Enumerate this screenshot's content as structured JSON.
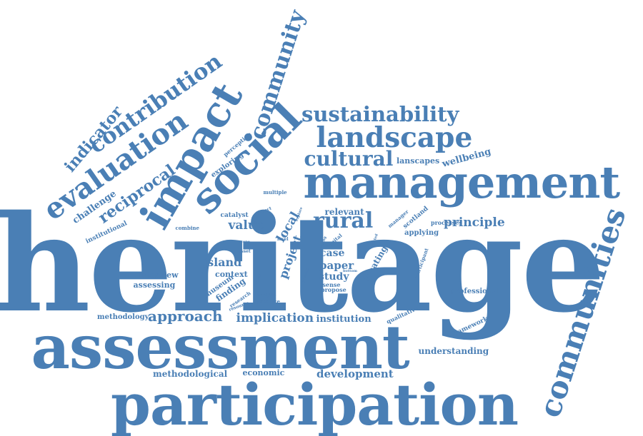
{
  "colors": {
    "text": "#4a7fb5",
    "background": "#ffffff"
  },
  "words": {
    "heritage": "heritage",
    "assessment": "assessment",
    "participation": "participation",
    "management": "management",
    "social": "social",
    "impact": "impact",
    "communities": "communities",
    "community": "community",
    "landscape": "landscape",
    "sustainability": "sustainability",
    "cultural": "cultural",
    "evaluation": "evaluation",
    "contribution": "contribution",
    "indicator": "indicator",
    "reciprocal": "reciprocal",
    "challenge": "challenge",
    "institutional": "institutional",
    "rural": "rural",
    "value": "value",
    "principle": "principle",
    "approach": "approach",
    "implication": "implication",
    "institution": "institution",
    "economic": "economic",
    "development": "development",
    "methodological": "methodological",
    "methodology": "methodology",
    "understanding": "understanding",
    "framework": "framework",
    "professional": "professional",
    "qualitative": "qualitative",
    "island": "island",
    "context": "context",
    "interview": "interview",
    "assessing": "assessing",
    "museum": "museum",
    "finding": "finding",
    "case": "case",
    "paper": "paper",
    "study": "study",
    "sense": "sense",
    "propose": "propose",
    "relevant": "relevant",
    "local": "local",
    "project": "project",
    "locating": "locating",
    "catalyst": "catalyst",
    "wellbeing": "wellbeing",
    "lanscapes": "lanscapes",
    "exploring": "exploring",
    "perception": "perception",
    "multiple": "multiple",
    "combine": "combine",
    "applying": "applying",
    "processes": "processes",
    "scotland": "scotland",
    "manager": "manager",
    "participant": "participant",
    "analysis": "analysis",
    "practice": "practice",
    "research": "research",
    "resource": "resource",
    "capital": "capital",
    "aspect": "aspect",
    "link": "link",
    "scope": "scope",
    "asset": "asset",
    "support": "support",
    "level": "level",
    "explore": "explore",
    "related": "related",
    "bottom": "bottom",
    "present": "present",
    "theme": "theme",
    "making": "making"
  }
}
